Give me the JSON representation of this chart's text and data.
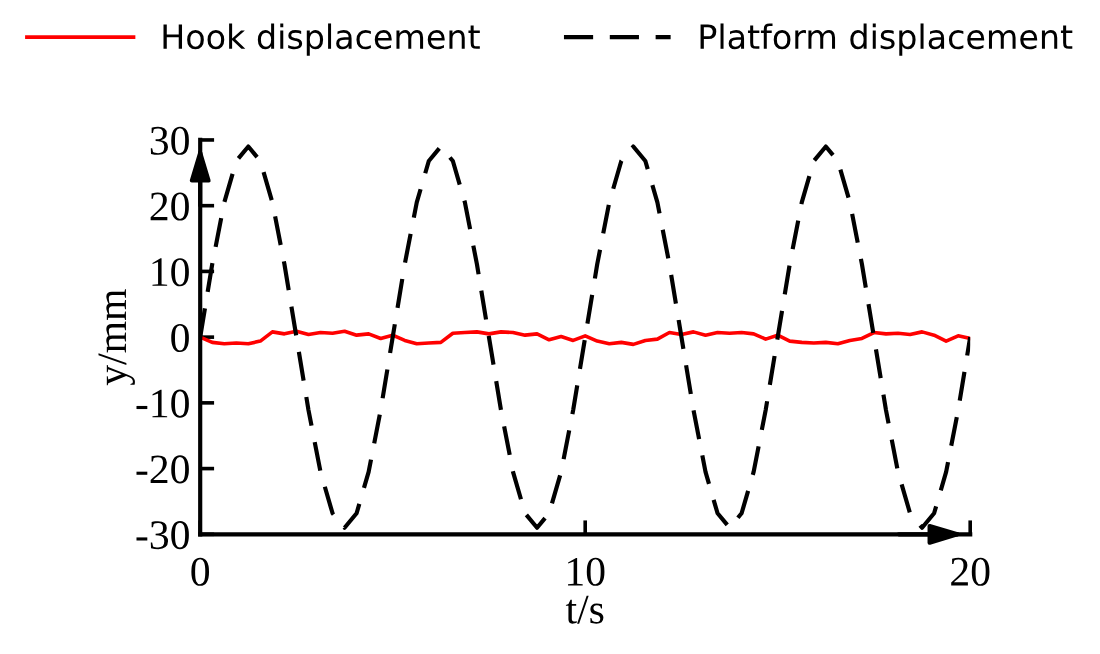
{
  "chart_data": {
    "type": "line",
    "xlabel": "t/s",
    "ylabel": "y/mm",
    "xlim": [
      0,
      20
    ],
    "ylim": [
      -30,
      30
    ],
    "xticks": [
      0,
      10,
      20
    ],
    "yticks": [
      -30,
      -20,
      -10,
      0,
      10,
      20,
      30
    ],
    "grid": false,
    "legend": "top",
    "marker": "none",
    "x": [
      0,
      0.3125,
      0.625,
      0.9375,
      1.25,
      1.5625,
      1.875,
      2.1875,
      2.5,
      2.8125,
      3.125,
      3.4375,
      3.75,
      4.0625,
      4.375,
      4.6875,
      5,
      5.3125,
      5.625,
      5.9375,
      6.25,
      6.5625,
      6.875,
      7.1875,
      7.5,
      7.8125,
      8.125,
      8.4375,
      8.75,
      9.0625,
      9.375,
      9.6875,
      10,
      10.3125,
      10.625,
      10.9375,
      11.25,
      11.5625,
      11.875,
      12.1875,
      12.5,
      12.8125,
      13.125,
      13.4375,
      13.75,
      14.0625,
      14.375,
      14.6875,
      15,
      15.3125,
      15.625,
      15.9375,
      16.25,
      16.5625,
      16.875,
      17.1875,
      17.5,
      17.8125,
      18.125,
      18.4375,
      18.75,
      19.0625,
      19.375,
      19.6875,
      20
    ],
    "series": [
      {
        "name": "Hook displacement",
        "color": "#ff0000",
        "line_style": "solid",
        "values": [
          0,
          -0.8,
          -1,
          -0.9,
          -1,
          -0.6,
          0.8,
          0.5,
          0.9,
          0.4,
          0.7,
          0.6,
          0.9,
          0.3,
          0.5,
          -0.2,
          0.3,
          -0.5,
          -1,
          -0.9,
          -0.8,
          0.6,
          0.7,
          0.8,
          0.5,
          0.8,
          0.7,
          0.3,
          0.5,
          -0.4,
          0.1,
          -0.5,
          0.2,
          -0.6,
          -1,
          -0.8,
          -1.1,
          -0.5,
          -0.3,
          0.7,
          0.4,
          0.8,
          0.3,
          0.7,
          0.6,
          0.7,
          0.5,
          -0.3,
          0.3,
          -0.6,
          -0.8,
          -0.9,
          -0.8,
          -1,
          -0.5,
          -0.2,
          0.7,
          0.5,
          0.6,
          0.4,
          0.8,
          0.3,
          -0.6,
          0.2,
          -0.2
        ]
      },
      {
        "name": "Platform displacement",
        "color": "#000000",
        "line_style": "dashed",
        "values": [
          0,
          11.1,
          20.5,
          26.8,
          29,
          26.8,
          20.5,
          11.1,
          0,
          -11.1,
          -20.5,
          -26.8,
          -29,
          -26.8,
          -20.5,
          -11.1,
          0,
          11.1,
          20.5,
          26.8,
          29,
          26.8,
          20.5,
          11.1,
          0,
          -11.1,
          -20.5,
          -26.8,
          -29,
          -26.8,
          -20.5,
          -11.1,
          0,
          11.1,
          20.5,
          26.8,
          29,
          26.8,
          20.5,
          11.1,
          0,
          -11.1,
          -20.5,
          -26.8,
          -29,
          -26.8,
          -20.5,
          -11.1,
          0,
          11.1,
          20.5,
          26.8,
          29,
          26.8,
          20.5,
          11.1,
          0,
          -11.1,
          -20.5,
          -26.8,
          -29,
          -26.8,
          -20.5,
          -11.1,
          0
        ]
      }
    ]
  }
}
